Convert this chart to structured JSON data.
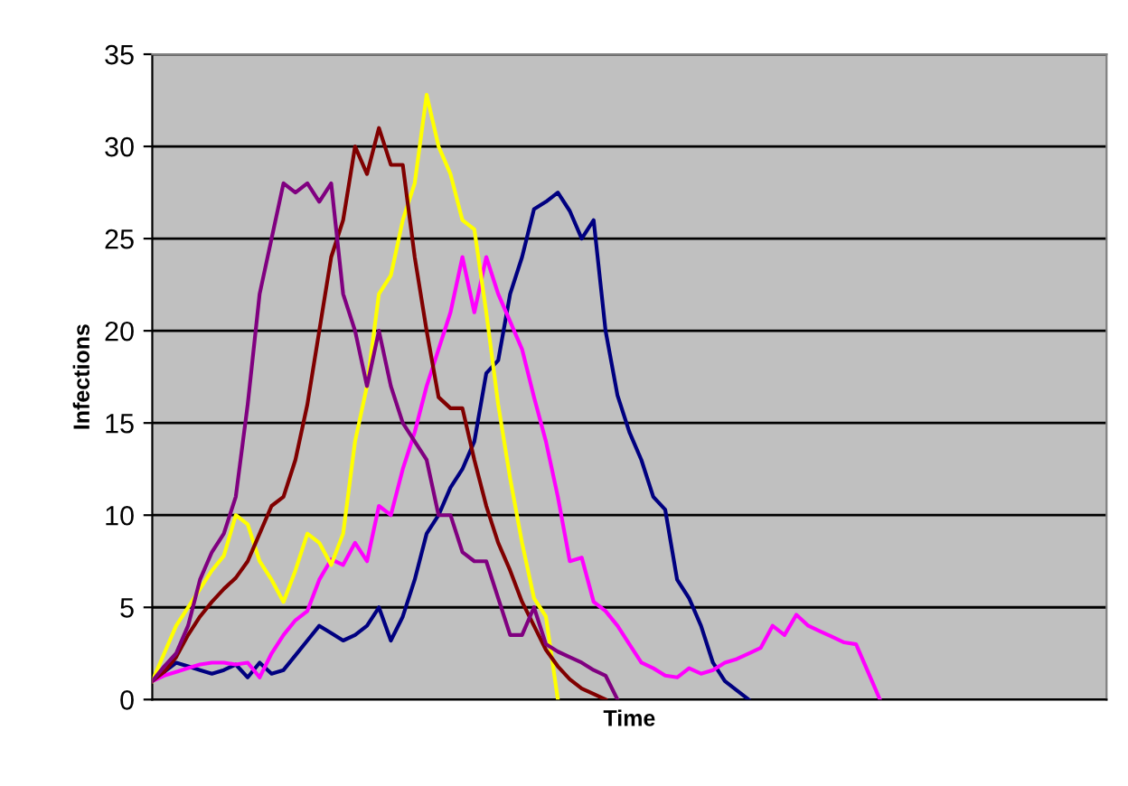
{
  "chart_data": {
    "type": "line",
    "xlabel": "Time",
    "ylabel": "Infections",
    "categories": [
      null,
      null,
      null,
      null,
      null,
      null,
      null,
      null,
      null,
      null,
      null,
      null,
      null,
      null,
      null,
      null,
      null,
      null,
      null,
      null,
      null,
      null,
      null,
      null,
      null,
      null,
      null,
      null,
      null,
      null,
      null,
      null,
      null,
      null,
      null,
      null,
      null,
      null,
      null,
      null,
      null,
      null,
      null,
      null,
      null,
      null,
      null,
      null,
      null,
      null,
      null,
      null,
      null,
      null,
      null,
      null,
      null,
      null,
      null,
      null,
      null,
      null,
      null,
      null,
      null,
      null,
      null,
      null,
      null,
      null,
      null,
      null,
      null,
      null,
      null,
      null,
      null,
      null,
      null,
      null,
      null
    ],
    "ylim": [
      0,
      35
    ],
    "yticks": [
      0,
      5,
      10,
      15,
      20,
      25,
      30,
      35
    ],
    "grid": "y",
    "tick_labels": "y",
    "marker": "none",
    "line_style": "solid",
    "series": [
      {
        "color": "#000080",
        "values": [
          1,
          1.5,
          2,
          1.8,
          1.6,
          1.4,
          1.6,
          1.9,
          1.2,
          2,
          1.4,
          1.6,
          2.4,
          3.2,
          4,
          3.6,
          3.2,
          3.5,
          4,
          5,
          3.2,
          4.5,
          6.5,
          9,
          10,
          11.5,
          12.5,
          14,
          17.7,
          18.4,
          22,
          24,
          26.6,
          27,
          27.5,
          26.5,
          25,
          26,
          20,
          16.5,
          14.5,
          13,
          11,
          10.3,
          6.5,
          5.5,
          4,
          2,
          1,
          0.5,
          0,
          null,
          null,
          null,
          null,
          null,
          null,
          null,
          null,
          null,
          null,
          null,
          null,
          null,
          null,
          null,
          null,
          null,
          null,
          null,
          null,
          null,
          null,
          null,
          null,
          null,
          null,
          null,
          null,
          null,
          null
        ]
      },
      {
        "color": "#ff00ff",
        "values": [
          1,
          1.3,
          1.5,
          1.7,
          1.9,
          2,
          2,
          1.9,
          2,
          1.2,
          2.5,
          3.5,
          4.3,
          4.8,
          6.5,
          7.6,
          7.3,
          8.5,
          7.5,
          10.5,
          10,
          12.5,
          14.5,
          17,
          19,
          21,
          24,
          21,
          24,
          22,
          20.5,
          19,
          16.4,
          14,
          11,
          7.5,
          7.7,
          5.3,
          4.8,
          4,
          3,
          2,
          1.7,
          1.3,
          1.2,
          1.7,
          1.4,
          1.6,
          2,
          2.2,
          2.5,
          2.8,
          4,
          3.5,
          4.6,
          4,
          3.7,
          3.4,
          3.1,
          3,
          1.5,
          0,
          null,
          null,
          null,
          null,
          null,
          null,
          null,
          null,
          null,
          null,
          null,
          null,
          null,
          null,
          null,
          null,
          null,
          null,
          null
        ]
      },
      {
        "color": "#ffff00",
        "values": [
          1,
          2.5,
          4,
          5,
          6,
          7,
          7.8,
          10,
          9.5,
          7.5,
          6.5,
          5.3,
          7,
          9,
          8.5,
          7.3,
          9,
          14,
          17,
          22,
          23,
          26,
          28,
          32.8,
          30,
          28.5,
          26,
          25.5,
          21,
          16,
          12,
          8.5,
          5.5,
          4.5,
          0,
          null,
          null,
          null,
          null,
          null,
          null,
          null,
          null,
          null,
          null,
          null,
          null,
          null,
          null,
          null,
          null,
          null,
          null,
          null,
          null,
          null,
          null,
          null,
          null,
          null,
          null,
          null,
          null,
          null,
          null,
          null,
          null,
          null,
          null,
          null,
          null,
          null,
          null,
          null,
          null,
          null,
          null,
          null,
          null,
          null,
          null
        ]
      },
      {
        "color": "#800000",
        "values": [
          1,
          1.5,
          2.3,
          3.5,
          4.5,
          5.3,
          6,
          6.6,
          7.5,
          9,
          10.5,
          11,
          13,
          16,
          20,
          24,
          26,
          30,
          28.5,
          31,
          29,
          29,
          24,
          20,
          16.4,
          15.8,
          15.8,
          13,
          10.5,
          8.5,
          7,
          5.3,
          4,
          2.7,
          1.8,
          1.1,
          0.6,
          0.3,
          0,
          null,
          null,
          null,
          null,
          null,
          null,
          null,
          null,
          null,
          null,
          null,
          null,
          null,
          null,
          null,
          null,
          null,
          null,
          null,
          null,
          null,
          null,
          null,
          null,
          null,
          null,
          null,
          null,
          null,
          null,
          null,
          null,
          null,
          null,
          null,
          null,
          null,
          null,
          null,
          null,
          null,
          null
        ]
      },
      {
        "color": "#800080",
        "values": [
          1,
          1.8,
          2.5,
          4,
          6.5,
          8,
          9,
          11,
          16,
          22,
          25,
          28,
          27.5,
          28,
          27,
          28,
          22,
          20,
          17,
          20,
          17,
          15,
          14,
          13,
          10,
          10,
          8,
          7.5,
          7.5,
          5.5,
          3.5,
          3.5,
          5,
          3,
          2.6,
          2.3,
          2,
          1.6,
          1.3,
          0,
          null,
          null,
          null,
          null,
          null,
          null,
          null,
          null,
          null,
          null,
          null,
          null,
          null,
          null,
          null,
          null,
          null,
          null,
          null,
          null,
          null,
          null,
          null,
          null,
          null,
          null,
          null,
          null,
          null,
          null,
          null,
          null,
          null,
          null,
          null,
          null,
          null,
          null,
          null,
          null,
          null
        ]
      }
    ]
  }
}
